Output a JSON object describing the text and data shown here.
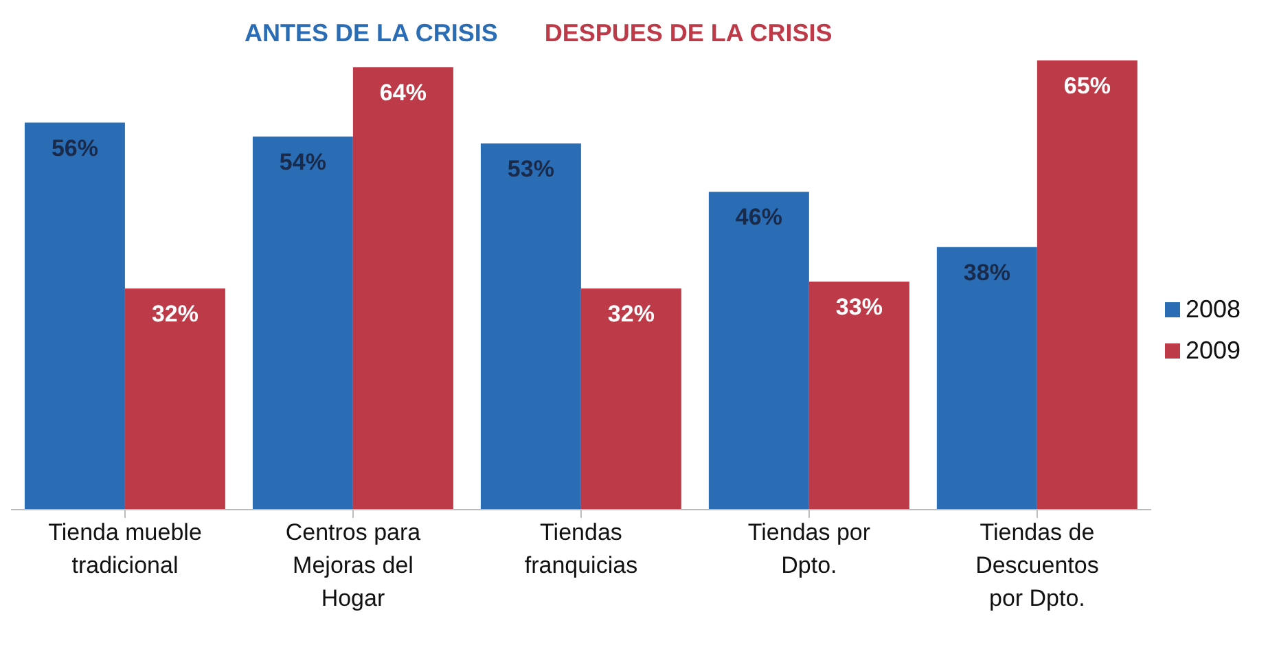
{
  "chart_data": {
    "type": "bar",
    "title": "ANTES DE LA CRISIS",
    "subtitle": "DESPUES DE LA CRISIS",
    "categories": [
      "Tienda mueble tradicional",
      "Centros para Mejoras del Hogar",
      "Tiendas franquicias",
      "Tiendas por Dpto.",
      "Tiendas de Descuentos por Dpto."
    ],
    "series": [
      {
        "name": "2008",
        "color": "#2a6db5",
        "values": [
          56,
          54,
          53,
          46,
          38
        ],
        "value_labels": [
          "56%",
          "54%",
          "53%",
          "46%",
          "38%"
        ]
      },
      {
        "name": "2009",
        "color": "#bd3a48",
        "values": [
          32,
          64,
          32,
          33,
          65
        ],
        "value_labels": [
          "32%",
          "64%",
          "32%",
          "33%",
          "65%"
        ]
      }
    ],
    "legend": "right",
    "grid": false
  }
}
